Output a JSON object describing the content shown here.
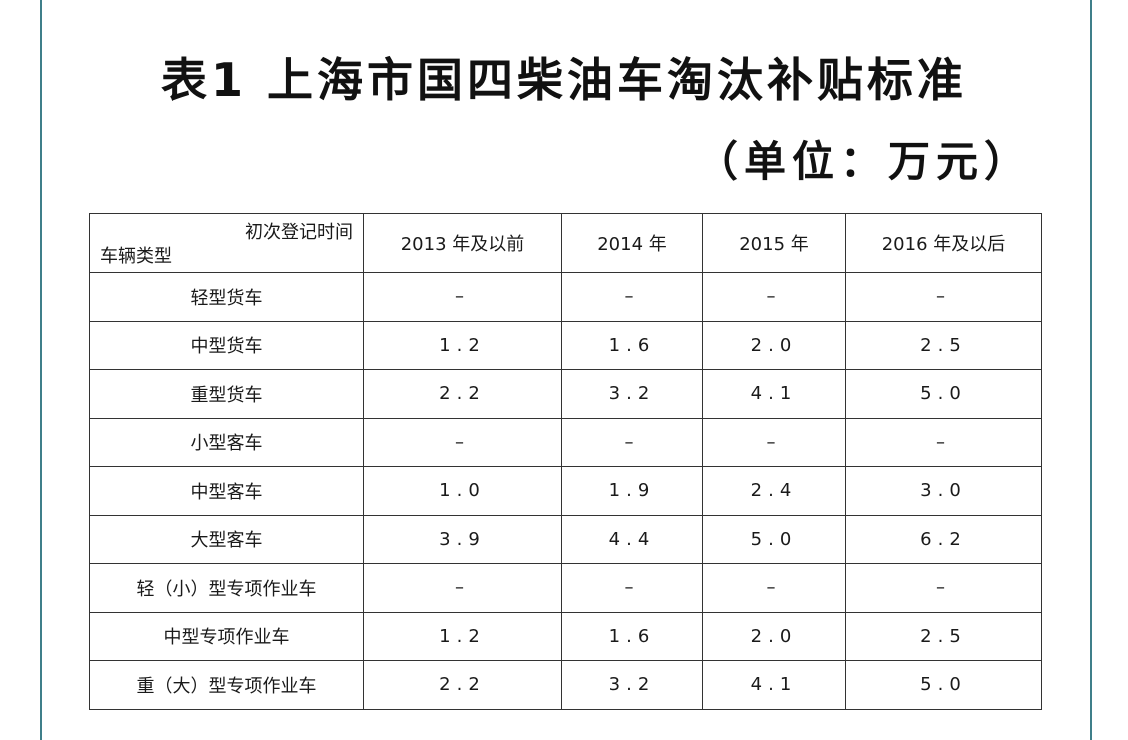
{
  "title": "表1 上海市国四柴油车淘汰补贴标准",
  "unit": "（单位：万元）",
  "table": {
    "corner_top": "初次登记时间",
    "corner_bottom": "车辆类型",
    "columns": [
      "2013 年及以前",
      "2014 年",
      "2015 年",
      "2016 年及以后"
    ],
    "rows": [
      {
        "type": "轻型货车",
        "values": [
          "–",
          "–",
          "–",
          "–"
        ]
      },
      {
        "type": "中型货车",
        "values": [
          "1.2",
          "1.6",
          "2.0",
          "2.5"
        ]
      },
      {
        "type": "重型货车",
        "values": [
          "2.2",
          "3.2",
          "4.1",
          "5.0"
        ]
      },
      {
        "type": "小型客车",
        "values": [
          "–",
          "–",
          "–",
          "–"
        ]
      },
      {
        "type": "中型客车",
        "values": [
          "1.0",
          "1.9",
          "2.4",
          "3.0"
        ]
      },
      {
        "type": "大型客车",
        "values": [
          "3.9",
          "4.4",
          "5.0",
          "6.2"
        ]
      },
      {
        "type": "轻（小）型专项作业车",
        "values": [
          "–",
          "–",
          "–",
          "–"
        ]
      },
      {
        "type": "中型专项作业车",
        "values": [
          "1.2",
          "1.6",
          "2.0",
          "2.5"
        ]
      },
      {
        "type": "重（大）型专项作业车",
        "values": [
          "2.2",
          "3.2",
          "4.1",
          "5.0"
        ]
      }
    ]
  },
  "colors": {
    "frame": "#3f7f8a",
    "text": "#111111",
    "border": "#333333"
  }
}
